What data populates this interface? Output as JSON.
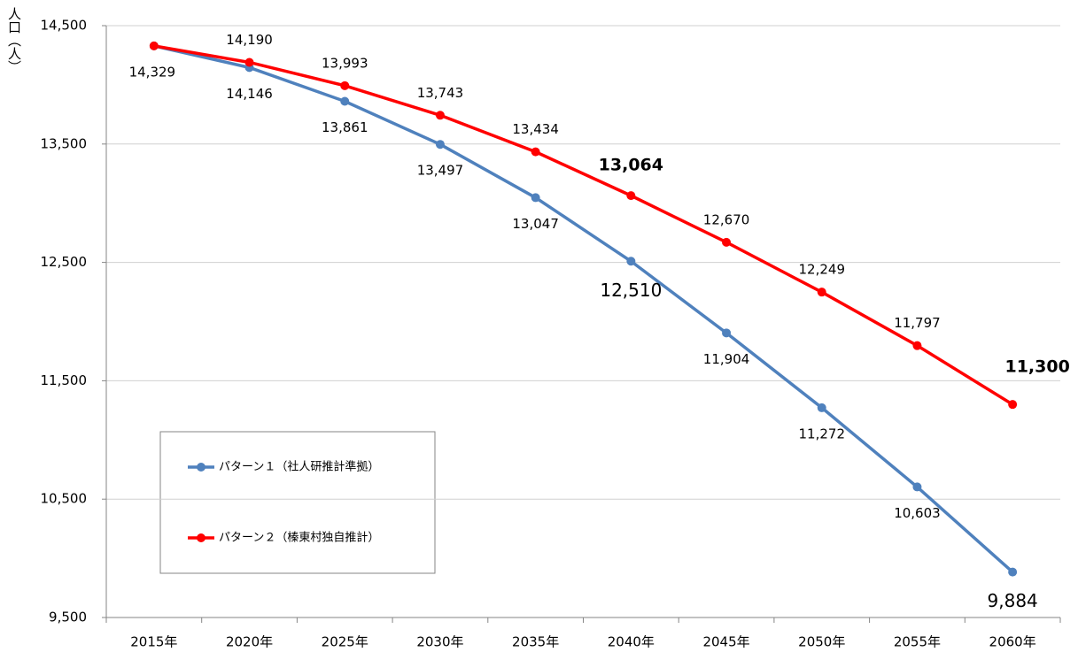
{
  "chart_data": {
    "type": "line",
    "y_label": "人口（人）",
    "categories": [
      "2015年",
      "2020年",
      "2025年",
      "2030年",
      "2035年",
      "2040年",
      "2045年",
      "2050年",
      "2055年",
      "2060年"
    ],
    "series": [
      {
        "name": "パターン１（社人研推計準拠）",
        "color": "#4f81bd",
        "values": [
          14329,
          14146,
          13861,
          13497,
          13047,
          12510,
          11904,
          11272,
          10603,
          9884
        ],
        "value_labels": [
          "14,329",
          "14,146",
          "13,861",
          "13,497",
          "13,047",
          "12,510",
          "11,904",
          "11,272",
          "10,603",
          "9,884"
        ]
      },
      {
        "name": "パターン２（榛東村独自推計）",
        "color": "#ff0000",
        "values": [
          14329,
          14190,
          13993,
          13743,
          13434,
          13064,
          12670,
          12249,
          11797,
          11300
        ],
        "value_labels": [
          null,
          "14,190",
          "13,993",
          "13,743",
          "13,434",
          "13,064",
          "12,670",
          "12,249",
          "11,797",
          "11,300"
        ]
      }
    ],
    "ylim": [
      9500,
      14500
    ],
    "yticks": [
      {
        "value": 9500,
        "label": "9,500"
      },
      {
        "value": 10500,
        "label": "10,500"
      },
      {
        "value": 11500,
        "label": "11,500"
      },
      {
        "value": 12500,
        "label": "12,500"
      },
      {
        "value": 13500,
        "label": "13,500"
      },
      {
        "value": 14500,
        "label": "14,500"
      }
    ],
    "grid": true
  }
}
